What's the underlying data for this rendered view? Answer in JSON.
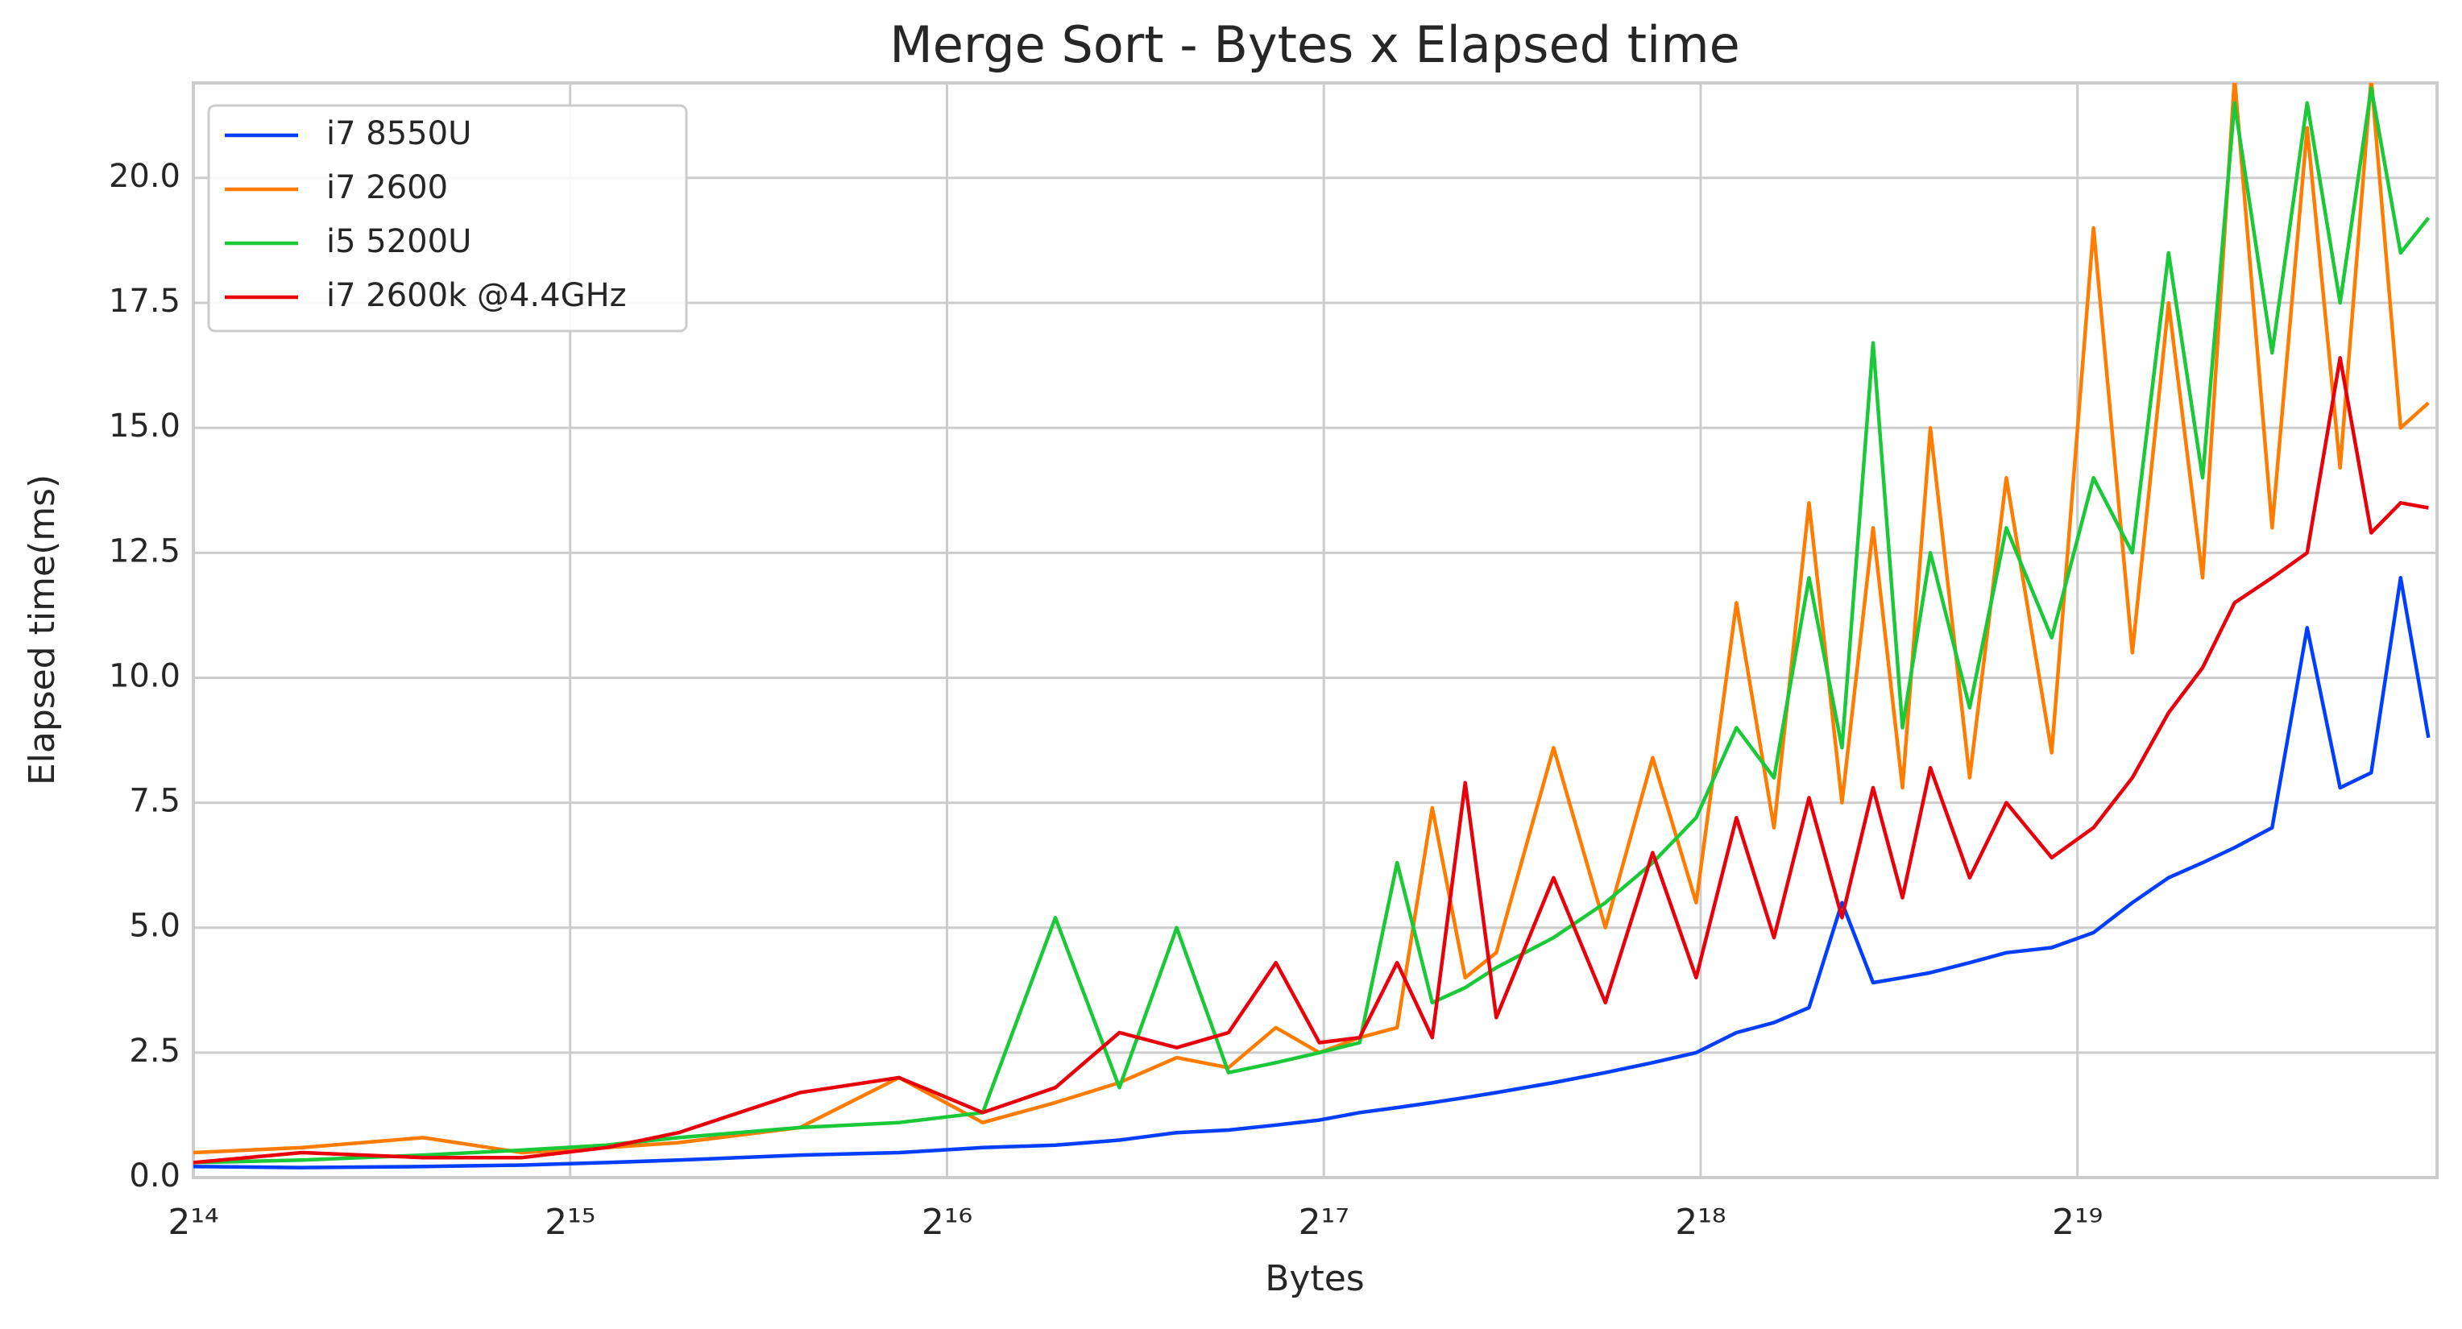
{
  "chart_data": {
    "type": "line",
    "title": "Merge Sort - Bytes x Elapsed time",
    "x_label": "Bytes",
    "y_label": "Elapsed time(ms)",
    "x": [
      16384,
      20000,
      25000,
      30000,
      35000,
      40000,
      50000,
      60000,
      70000,
      80000,
      90000,
      100000,
      110000,
      120000,
      130000,
      140000,
      150000,
      160000,
      170000,
      180000,
      200000,
      220000,
      240000,
      260000,
      280000,
      300000,
      320000,
      340000,
      360000,
      380000,
      400000,
      430000,
      460000,
      500000,
      540000,
      580000,
      620000,
      660000,
      700000,
      750000,
      800000,
      850000,
      900000,
      950000,
      1000000
    ],
    "series": [
      {
        "name": "i7 8550U",
        "color": "#023eff",
        "values": [
          0.22,
          0.2,
          0.22,
          0.25,
          0.3,
          0.35,
          0.45,
          0.5,
          0.6,
          0.65,
          0.75,
          0.9,
          0.95,
          1.05,
          1.15,
          1.3,
          1.4,
          1.5,
          1.6,
          1.7,
          1.9,
          2.1,
          2.3,
          2.5,
          2.9,
          3.1,
          3.4,
          5.5,
          3.9,
          4.0,
          4.1,
          4.3,
          4.5,
          4.6,
          4.9,
          5.5,
          6.0,
          6.3,
          6.6,
          7.0,
          11.0,
          7.8,
          8.1,
          12.0,
          8.8
        ]
      },
      {
        "name": "i7 2600",
        "color": "#ff7c00",
        "values": [
          0.5,
          0.6,
          0.8,
          0.5,
          0.6,
          0.7,
          1.0,
          2.0,
          1.1,
          1.5,
          1.9,
          2.4,
          2.2,
          3.0,
          2.5,
          2.8,
          3.0,
          7.4,
          4.0,
          4.5,
          8.6,
          5.0,
          8.4,
          5.5,
          11.5,
          7.0,
          13.5,
          7.5,
          13.0,
          7.8,
          15.0,
          8.0,
          14.0,
          8.5,
          19.0,
          10.5,
          17.5,
          12.0,
          22,
          13.0,
          21,
          14.2,
          22,
          15.0,
          15.5
        ]
      },
      {
        "name": "i5 5200U",
        "color": "#1ac938",
        "values": [
          0.3,
          0.35,
          0.45,
          0.55,
          0.65,
          0.8,
          1.0,
          1.1,
          1.3,
          5.2,
          1.8,
          5.0,
          2.1,
          2.3,
          2.5,
          2.7,
          6.3,
          3.5,
          3.8,
          4.2,
          4.8,
          5.5,
          6.3,
          7.2,
          9.0,
          8.0,
          12.0,
          8.6,
          16.7,
          9.0,
          12.5,
          9.4,
          13.0,
          10.8,
          14.0,
          12.5,
          18.5,
          14.0,
          21.5,
          16.5,
          21.5,
          17.5,
          21.8,
          18.5,
          19.2
        ]
      },
      {
        "name": "i7 2600k @4.4GHz",
        "color": "#e8000b",
        "values": [
          0.3,
          0.5,
          0.4,
          0.4,
          0.6,
          0.9,
          1.7,
          2.0,
          1.3,
          1.8,
          2.9,
          2.6,
          2.9,
          4.3,
          2.7,
          2.8,
          4.3,
          2.8,
          7.9,
          3.2,
          6.0,
          3.5,
          6.5,
          4.0,
          7.2,
          4.8,
          7.6,
          5.2,
          7.8,
          5.6,
          8.2,
          6.0,
          7.5,
          6.4,
          7.0,
          8.0,
          9.3,
          10.2,
          11.5,
          12.0,
          12.5,
          16.4,
          12.9,
          13.5,
          13.4
        ]
      }
    ],
    "xscale": "log2",
    "xlim": [
      16384,
      1015808
    ],
    "xticks": [
      {
        "value": 16384,
        "label": "2¹⁴"
      },
      {
        "value": 32768,
        "label": "2¹⁵"
      },
      {
        "value": 65536,
        "label": "2¹⁶"
      },
      {
        "value": 131072,
        "label": "2¹⁷"
      },
      {
        "value": 262144,
        "label": "2¹⁸"
      },
      {
        "value": 524288,
        "label": "2¹⁹"
      }
    ],
    "ylim": [
      0,
      21.9
    ],
    "yticks": [
      {
        "value": 0,
        "label": "0.0"
      },
      2.5,
      {
        "value": 5,
        "label": "5.0"
      },
      7.5,
      {
        "value": 10,
        "label": "10.0"
      },
      12.5,
      {
        "value": 15,
        "label": "15.0"
      },
      17.5,
      {
        "value": 20,
        "label": "20.0"
      }
    ],
    "grid": true,
    "legend": "upper left"
  }
}
